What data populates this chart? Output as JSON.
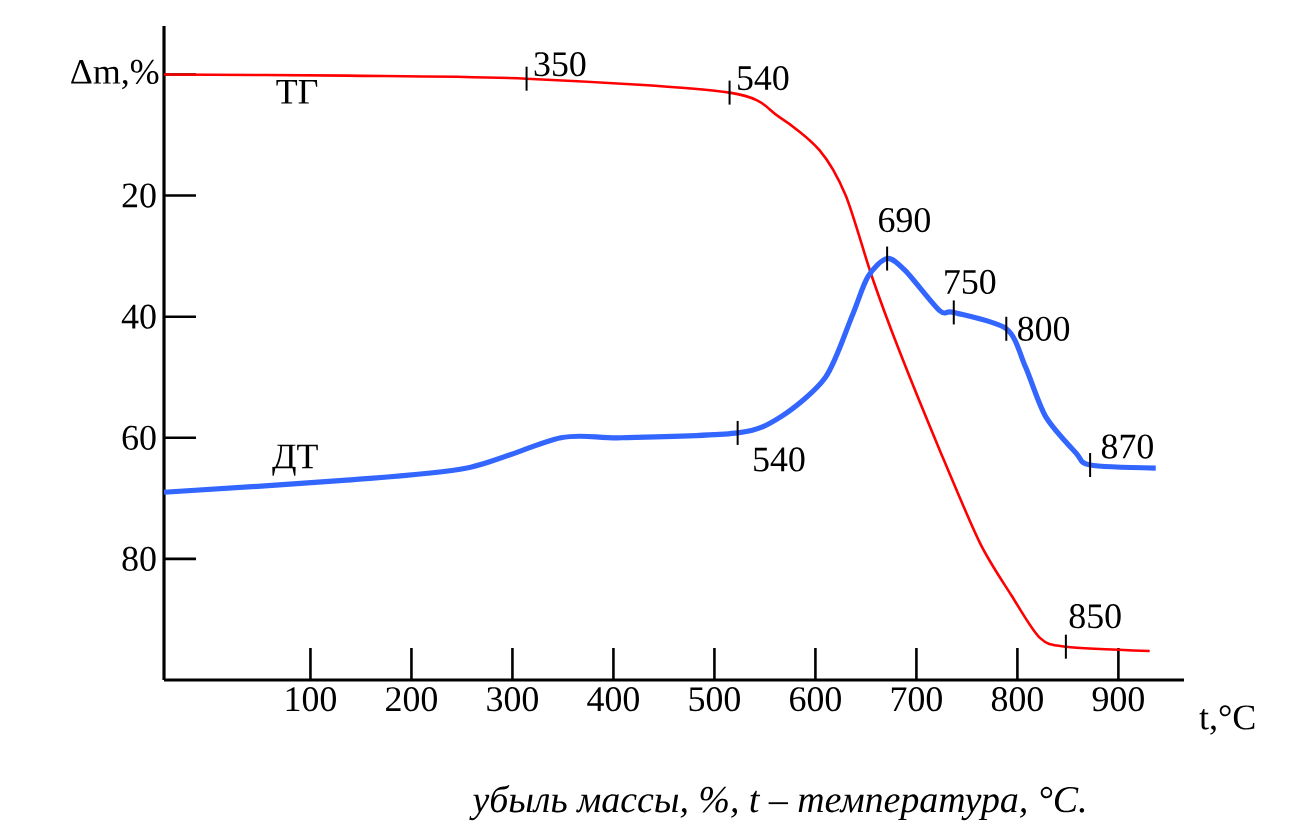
{
  "chart_data": {
    "type": "line",
    "xlabel": "t,°C",
    "ylabel": "Δm,%",
    "xlim": [
      -45,
      965
    ],
    "ylim": [
      100,
      -8
    ],
    "xticks": [
      100,
      200,
      300,
      400,
      500,
      600,
      700,
      800,
      900
    ],
    "yticks": [
      {
        "value": 0,
        "label": null
      },
      20,
      40,
      60,
      80
    ],
    "legend": false,
    "grid": false,
    "marker": "none",
    "line_style": "solid",
    "series": [
      {
        "name": "ТГ",
        "color": "#ff0000",
        "x": [
          -45,
          136,
          314,
          515,
          564,
          604,
          630,
          656,
          683,
          723,
          763,
          794,
          822,
          848,
          931
        ],
        "values": [
          0,
          0.2,
          0.7,
          3,
          7,
          12.5,
          20,
          33.4,
          45.6,
          62,
          77.4,
          86,
          93,
          94.5,
          95.2
        ]
      },
      {
        "name": "ДТ",
        "color": "#3366ff",
        "x": [
          -45,
          136,
          255,
          348,
          408,
          523,
          566,
          610,
          636,
          652,
          671,
          689,
          723,
          737,
          789,
          808,
          828,
          858,
          872,
          937
        ],
        "values": [
          69,
          67,
          65,
          60,
          60,
          59.2,
          56.5,
          50,
          40,
          33.4,
          30.4,
          32.4,
          39,
          39.3,
          42,
          48.3,
          56.5,
          62.5,
          64.5,
          65
        ]
      }
    ],
    "annotations": [
      {
        "text": "350",
        "x": 314,
        "y": 0.7
      },
      {
        "text": "540",
        "x": 515,
        "y": 3
      },
      {
        "text": "540",
        "x": 523,
        "y": 59.2
      },
      {
        "text": "690",
        "x": 671,
        "y": 30.4
      },
      {
        "text": "750",
        "x": 737,
        "y": 39.3
      },
      {
        "text": "800",
        "x": 789,
        "y": 42
      },
      {
        "text": "870",
        "x": 872,
        "y": 64.5
      },
      {
        "text": "850",
        "x": 848,
        "y": 94.5
      },
      "убыль массы, %, t – температура, °C."
    ]
  }
}
